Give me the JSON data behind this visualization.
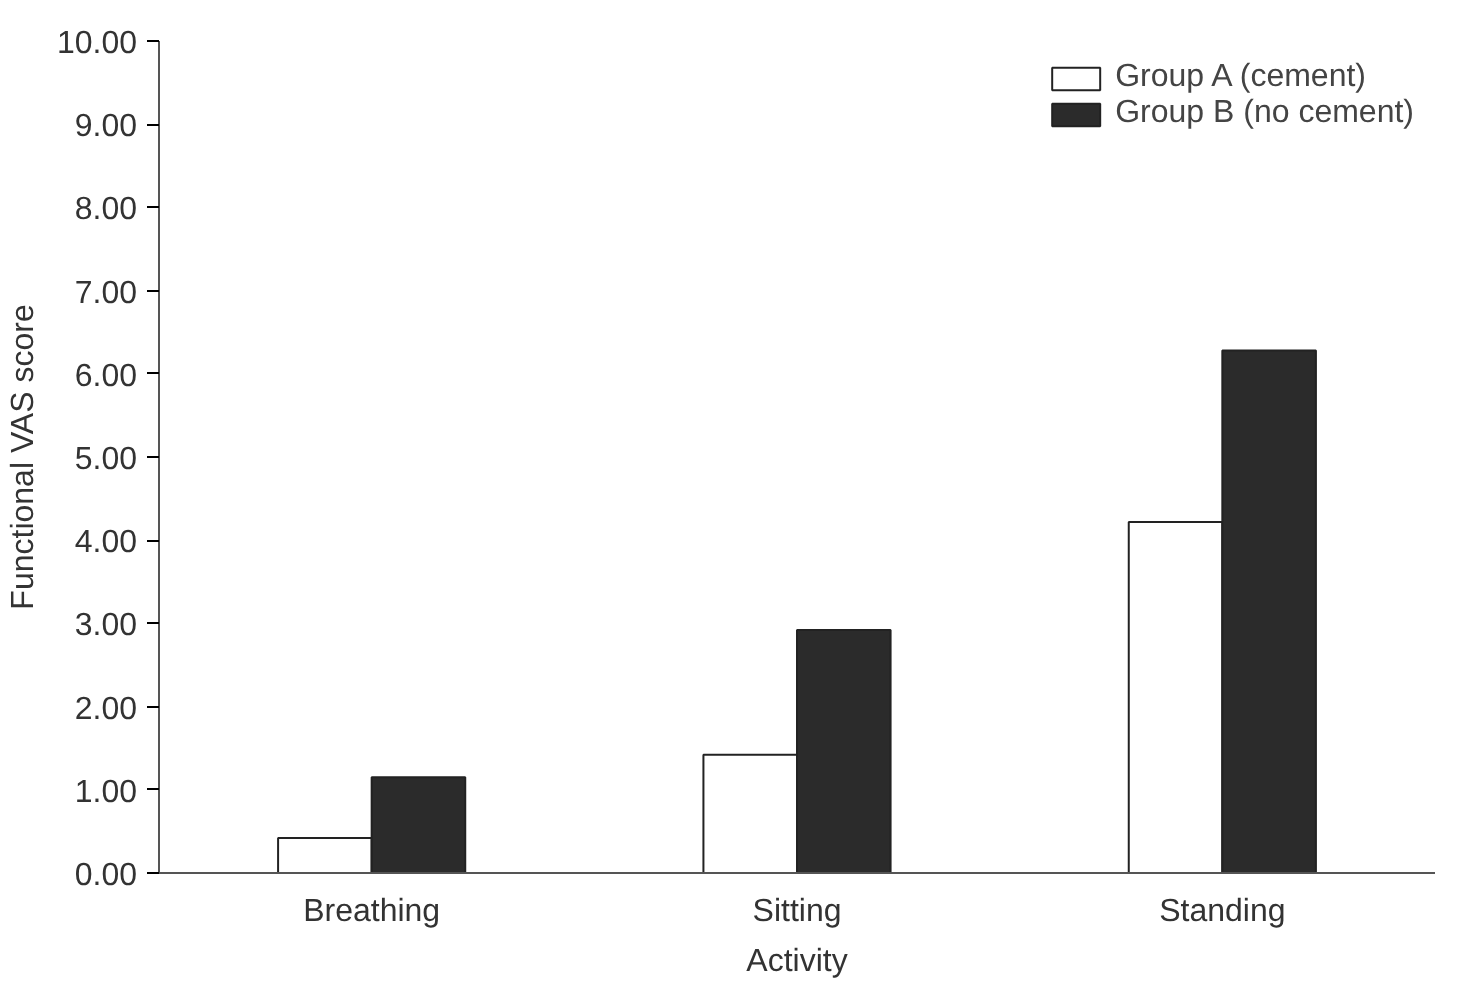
{
  "chart_data": {
    "type": "bar",
    "xlabel": "Activity",
    "ylabel": "Functional VAS score",
    "categories": [
      "Breathing",
      "Sitting",
      "Standing"
    ],
    "series": [
      {
        "name": "Group A (cement)",
        "color": "#ffffff",
        "values": [
          0.42,
          1.42,
          4.22
        ]
      },
      {
        "name": "Group B (no cement)",
        "color": "#2b2b2b",
        "values": [
          1.15,
          2.92,
          6.28
        ]
      }
    ],
    "ylim": [
      0,
      10
    ],
    "yticks": [
      {
        "value": 0,
        "label": "0.00"
      },
      {
        "value": 1,
        "label": "1.00"
      },
      {
        "value": 2,
        "label": "2.00"
      },
      {
        "value": 3,
        "label": "3.00"
      },
      {
        "value": 4,
        "label": "4.00"
      },
      {
        "value": 5,
        "label": "5.00"
      },
      {
        "value": 6,
        "label": "6.00"
      },
      {
        "value": 7,
        "label": "7.00"
      },
      {
        "value": 8,
        "label": "8.00"
      },
      {
        "value": 9,
        "label": "9.00"
      },
      {
        "value": 10,
        "label": "10.00"
      }
    ],
    "grid": false,
    "legend": "top right"
  }
}
